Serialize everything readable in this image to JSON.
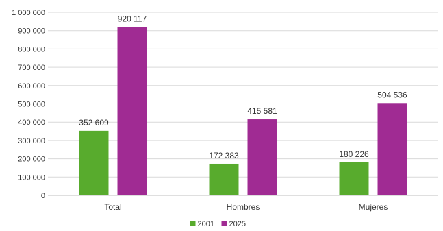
{
  "chart_data": {
    "type": "bar",
    "title": "",
    "xlabel": "",
    "ylabel": "",
    "categories": [
      "Total",
      "Hombres",
      "Mujeres"
    ],
    "series": [
      {
        "name": "2001",
        "color": "#58ab2d",
        "values": [
          352609,
          172383,
          180226
        ],
        "labels": [
          "352 609",
          "172 383",
          "180 226"
        ]
      },
      {
        "name": "2025",
        "color": "#a02b93",
        "values": [
          920117,
          415581,
          504536
        ],
        "labels": [
          "920 117",
          "415 581",
          "504 536"
        ]
      }
    ],
    "ylim": [
      0,
      1000000
    ],
    "yticks": [
      0,
      100000,
      200000,
      300000,
      400000,
      500000,
      600000,
      700000,
      800000,
      900000,
      1000000
    ],
    "ytick_labels": [
      "0",
      "100 000",
      "200 000",
      "300 000",
      "400 000",
      "500 000",
      "600 000",
      "700 000",
      "800 000",
      "900 000",
      "1 000 000"
    ],
    "grid": true,
    "legend_position": "bottom"
  }
}
